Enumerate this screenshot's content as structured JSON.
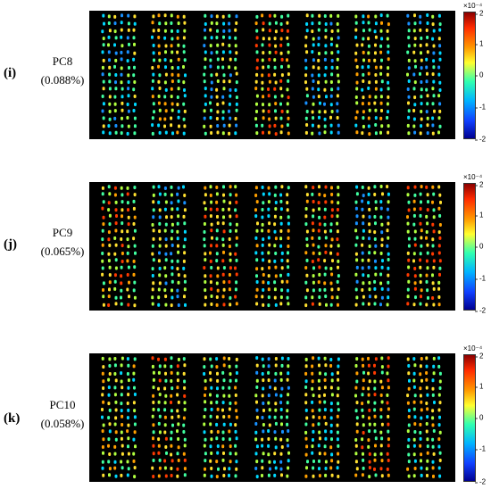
{
  "panels": [
    {
      "letter": "(i)",
      "pc": "PC8",
      "variance": "(0.088%)"
    },
    {
      "letter": "(j)",
      "pc": "PC9",
      "variance": "(0.065%)"
    },
    {
      "letter": "(k)",
      "pc": "PC10",
      "variance": "(0.058%)"
    }
  ],
  "colorbar": {
    "exponent": "×10⁻⁴",
    "ticks": [
      "2",
      "1",
      "0",
      "-1",
      "-2"
    ],
    "range": [
      -2,
      2
    ],
    "colormap": "jet"
  }
}
